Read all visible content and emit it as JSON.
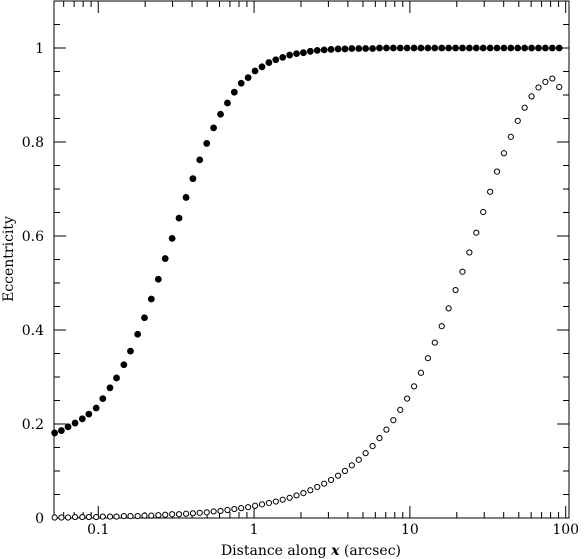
{
  "chart_data": {
    "type": "scatter",
    "xlabel_prefix": "Distance along ",
    "xlabel_var": "x",
    "xlabel_suffix": " (arcsec)",
    "ylabel": "Eccentricity",
    "xscale": "log",
    "xlim": [
      0.052,
      105
    ],
    "ylim": [
      0,
      1.1
    ],
    "xticks": [
      {
        "value": 0.1,
        "label": "0.1"
      },
      {
        "value": 1,
        "label": "1"
      },
      {
        "value": 10,
        "label": "10"
      },
      {
        "value": 100,
        "label": "100"
      }
    ],
    "yticks": [
      {
        "value": 0,
        "label": "0"
      },
      {
        "value": 0.2,
        "label": "0.2"
      },
      {
        "value": 0.4,
        "label": "0.4"
      },
      {
        "value": 0.6,
        "label": "0.6"
      },
      {
        "value": 0.8,
        "label": "0.8"
      },
      {
        "value": 1,
        "label": "1"
      }
    ],
    "grid": false,
    "series": [
      {
        "marker": "filled-circle",
        "x": [
          0.0525,
          0.058,
          0.064,
          0.071,
          0.079,
          0.087,
          0.097,
          0.107,
          0.119,
          0.131,
          0.146,
          0.161,
          0.179,
          0.198,
          0.219,
          0.243,
          0.269,
          0.298,
          0.33,
          0.366,
          0.405,
          0.448,
          0.497,
          0.55,
          0.609,
          0.675,
          0.747,
          0.827,
          0.916,
          1.015,
          1.124,
          1.245,
          1.379,
          1.527,
          1.691,
          1.873,
          2.074,
          2.297,
          2.544,
          2.818,
          3.12,
          3.46,
          3.83,
          4.24,
          4.7,
          5.2,
          5.76,
          6.38,
          7.07,
          7.83,
          8.67,
          9.6,
          10.64,
          11.78,
          13.05,
          14.45,
          16.01,
          17.73,
          19.64,
          21.75,
          24.09,
          26.68,
          29.55,
          32.73,
          36.25,
          40.14,
          44.46,
          49.24,
          54.54,
          60.4,
          66.9,
          74.1,
          82.06,
          90.88
        ],
        "y": [
          0.181,
          0.186,
          0.194,
          0.202,
          0.211,
          0.221,
          0.234,
          0.254,
          0.277,
          0.298,
          0.326,
          0.355,
          0.391,
          0.426,
          0.466,
          0.508,
          0.552,
          0.595,
          0.638,
          0.682,
          0.722,
          0.762,
          0.797,
          0.83,
          0.859,
          0.883,
          0.906,
          0.925,
          0.937,
          0.951,
          0.96,
          0.969,
          0.975,
          0.98,
          0.985,
          0.988,
          0.99,
          0.993,
          0.995,
          0.996,
          0.997,
          0.998,
          0.998,
          0.999,
          0.999,
          0.999,
          0.999,
          1,
          1,
          1,
          1,
          1,
          1,
          1,
          1,
          1,
          1,
          1,
          1,
          1,
          1,
          1,
          1,
          1,
          1,
          1,
          1,
          1,
          1,
          1,
          1,
          1,
          1,
          1
        ]
      },
      {
        "marker": "open-circle",
        "x": [
          0.0525,
          0.058,
          0.064,
          0.071,
          0.079,
          0.087,
          0.097,
          0.107,
          0.119,
          0.131,
          0.146,
          0.161,
          0.179,
          0.198,
          0.219,
          0.243,
          0.269,
          0.298,
          0.33,
          0.366,
          0.405,
          0.448,
          0.497,
          0.55,
          0.609,
          0.675,
          0.747,
          0.827,
          0.916,
          1.015,
          1.124,
          1.245,
          1.379,
          1.527,
          1.691,
          1.873,
          2.074,
          2.297,
          2.544,
          2.818,
          3.12,
          3.46,
          3.83,
          4.24,
          4.7,
          5.2,
          5.76,
          6.38,
          7.07,
          7.83,
          8.67,
          9.6,
          10.64,
          11.78,
          13.05,
          14.45,
          16.01,
          17.73,
          19.64,
          21.75,
          24.09,
          26.68,
          29.55,
          32.73,
          36.25,
          40.14,
          44.46,
          49.24,
          54.54,
          60.4,
          66.9,
          74.1,
          82.06,
          90.88
        ],
        "y": [
          0.001,
          0.001,
          0.001,
          0.002,
          0.002,
          0.002,
          0.002,
          0.003,
          0.003,
          0.003,
          0.004,
          0.004,
          0.004,
          0.005,
          0.005,
          0.006,
          0.007,
          0.008,
          0.008,
          0.009,
          0.01,
          0.011,
          0.012,
          0.014,
          0.015,
          0.017,
          0.019,
          0.021,
          0.023,
          0.026,
          0.029,
          0.032,
          0.035,
          0.039,
          0.043,
          0.048,
          0.053,
          0.059,
          0.066,
          0.073,
          0.081,
          0.09,
          0.1,
          0.112,
          0.124,
          0.138,
          0.153,
          0.17,
          0.188,
          0.208,
          0.23,
          0.254,
          0.28,
          0.309,
          0.34,
          0.373,
          0.408,
          0.446,
          0.485,
          0.524,
          0.565,
          0.607,
          0.651,
          0.694,
          0.737,
          0.776,
          0.811,
          0.845,
          0.873,
          0.897,
          0.916,
          0.928,
          0.935,
          0.917
        ]
      }
    ]
  }
}
